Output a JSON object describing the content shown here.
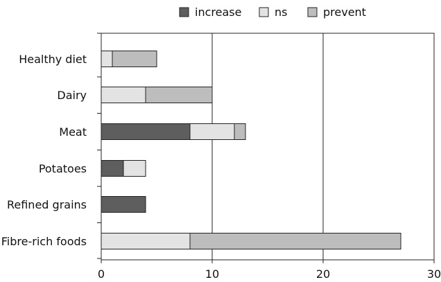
{
  "chart_data": {
    "type": "bar",
    "orientation": "horizontal",
    "stacked": true,
    "categories": [
      "Healthy diet",
      "Dairy",
      "Meat",
      "Potatoes",
      "Refined grains",
      "Fibre-rich foods"
    ],
    "series": [
      {
        "name": "increase",
        "color": "#5e5e5e",
        "values": [
          0,
          0,
          8,
          2,
          4,
          0
        ]
      },
      {
        "name": "ns",
        "color": "#e3e3e3",
        "values": [
          1,
          4,
          4,
          2,
          0,
          8
        ]
      },
      {
        "name": "prevent",
        "color": "#bdbdbd",
        "values": [
          4,
          6,
          1,
          0,
          0,
          19
        ]
      }
    ],
    "xlim": [
      0,
      30
    ],
    "xticks": [
      0,
      10,
      20,
      30
    ],
    "grid": "vertical lines at 10 and 20",
    "legend_position": "top"
  }
}
